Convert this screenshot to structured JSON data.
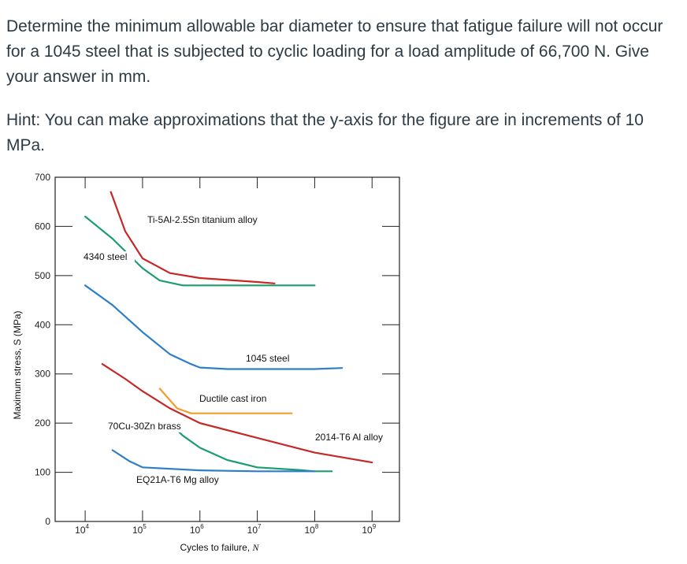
{
  "question": "Determine the minimum allowable bar diameter to ensure that fatigue failure will not occur for a 1045 steel that is subjected to cyclic loading for a load amplitude of 66,700 N. Give your answer in mm.",
  "hint": "Hint: You can make approximations that the y-axis for the figure are in increments of 10 MPa.",
  "chart_data": {
    "type": "line",
    "xscale": "log",
    "xlabel": "Cycles to failure, N",
    "ylabel": "Maximum stress, S (MPa)",
    "xlim": [
      3000,
      3000000000
    ],
    "ylim": [
      0,
      700
    ],
    "y_ticks": [
      "0",
      "100",
      "200",
      "300",
      "400",
      "500",
      "600",
      "700"
    ],
    "x_ticks": [
      {
        "base": "10",
        "exp": "4",
        "value": 10000
      },
      {
        "base": "10",
        "exp": "5",
        "value": 100000
      },
      {
        "base": "10",
        "exp": "6",
        "value": 1000000
      },
      {
        "base": "10",
        "exp": "7",
        "value": 10000000
      },
      {
        "base": "10",
        "exp": "8",
        "value": 100000000
      },
      {
        "base": "10",
        "exp": "9",
        "value": 1000000000
      }
    ],
    "series": [
      {
        "name": "Ti-5Al-2.5Sn titanium alloy",
        "color": "#c62828",
        "points": [
          [
            28000,
            670
          ],
          [
            50000,
            590
          ],
          [
            100000,
            535
          ],
          [
            300000,
            505
          ],
          [
            1000000,
            495
          ],
          [
            10000000,
            487
          ],
          [
            20000000,
            484
          ]
        ]
      },
      {
        "name": "4340 steel",
        "color": "#1a9e6e",
        "points": [
          [
            10000,
            620
          ],
          [
            30000,
            575
          ],
          [
            100000,
            515
          ],
          [
            200000,
            490
          ],
          [
            500000,
            480
          ],
          [
            1000000,
            480
          ],
          [
            10000000,
            480
          ],
          [
            100000000,
            480
          ]
        ]
      },
      {
        "name": "1045 steel",
        "color": "#2c7fc8",
        "points": [
          [
            10000,
            480
          ],
          [
            30000,
            440
          ],
          [
            100000,
            385
          ],
          [
            300000,
            340
          ],
          [
            700000,
            320
          ],
          [
            1000000,
            313
          ],
          [
            3000000,
            310
          ],
          [
            100000000,
            310
          ],
          [
            300000000,
            312
          ]
        ]
      },
      {
        "name": "Ductile cast iron",
        "color": "#f39c2b",
        "points": [
          [
            200000,
            270
          ],
          [
            400000,
            230
          ],
          [
            700000,
            220
          ],
          [
            10000000,
            220
          ],
          [
            40000000,
            220
          ]
        ]
      },
      {
        "name": "2014-T6 Al alloy",
        "color": "#c62828",
        "points": [
          [
            20000,
            320
          ],
          [
            50000,
            290
          ],
          [
            100000,
            265
          ],
          [
            300000,
            230
          ],
          [
            1000000,
            200
          ],
          [
            10000000,
            170
          ],
          [
            100000000,
            140
          ],
          [
            1000000000,
            120
          ]
        ]
      },
      {
        "name": "70Cu-30Zn brass",
        "color": "#1a9e6e",
        "points": [
          [
            300000,
            200
          ],
          [
            500000,
            175
          ],
          [
            1000000,
            150
          ],
          [
            3000000,
            125
          ],
          [
            10000000,
            110
          ],
          [
            50000000,
            105
          ],
          [
            100000000,
            102
          ],
          [
            200000000,
            102
          ]
        ]
      },
      {
        "name": "EQ21A-T6 Mg alloy",
        "color": "#2c7fc8",
        "points": [
          [
            30000,
            145
          ],
          [
            60000,
            122
          ],
          [
            100000,
            110
          ],
          [
            1000000,
            104
          ],
          [
            10000000,
            102
          ],
          [
            100000000,
            102
          ]
        ]
      }
    ],
    "annotations": [
      "Ti-5Al-2.5Sn titanium alloy",
      "4340 steel",
      "1045 steel",
      "Ductile cast iron",
      "70Cu-30Zn brass",
      "2014-T6 Al alloy",
      "EQ21A-T6 Mg alloy"
    ]
  }
}
